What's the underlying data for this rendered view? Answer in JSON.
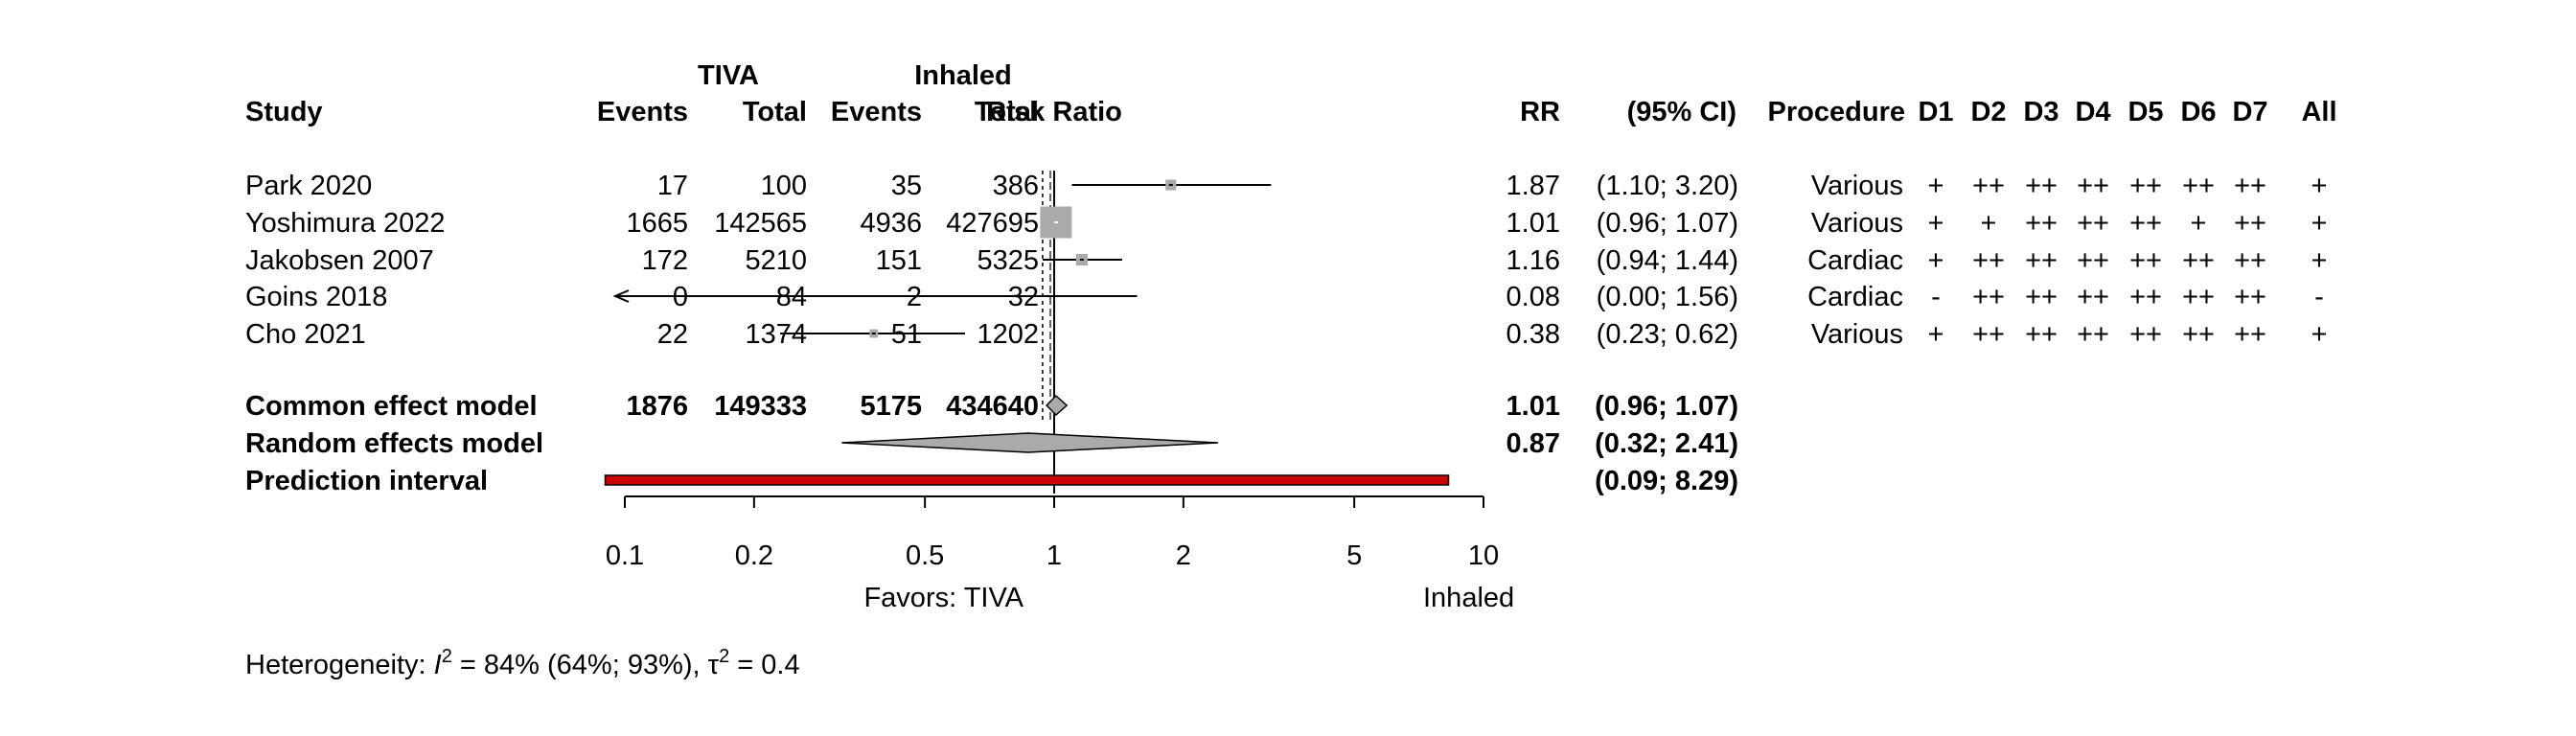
{
  "chart_data": {
    "type": "forest",
    "group_labels": {
      "treatment": "TIVA",
      "control": "Inhaled"
    },
    "headers": {
      "study": "Study",
      "events": "Events",
      "total": "Total",
      "plot": "Risk Ratio",
      "rr": "RR",
      "ci": "(95% CI)",
      "procedure": "Procedure",
      "domains": [
        "D1",
        "D2",
        "D3",
        "D4",
        "D5",
        "D6",
        "D7",
        "All"
      ]
    },
    "studies": [
      {
        "label": "Park 2020",
        "e1": "17",
        "n1": "100",
        "e2": "35",
        "n2": "386",
        "rr": 1.87,
        "lower": 1.1,
        "upper": 3.2,
        "rr_text": "1.87",
        "ci_text": "(1.10; 3.20)",
        "procedure": "Various",
        "bias": [
          "+",
          "++",
          "++",
          "++",
          "++",
          "++",
          "++",
          "+"
        ],
        "weight": 0.1
      },
      {
        "label": "Yoshimura 2022",
        "e1": "1665",
        "n1": "142565",
        "e2": "4936",
        "n2": "427695",
        "rr": 1.01,
        "lower": 0.96,
        "upper": 1.07,
        "rr_text": "1.01",
        "ci_text": "(0.96; 1.07)",
        "procedure": "Various",
        "bias": [
          "+",
          "+",
          "++",
          "++",
          "++",
          "+",
          "++",
          "+"
        ],
        "weight": 1.0
      },
      {
        "label": "Jakobsen 2007",
        "e1": "172",
        "n1": "5210",
        "e2": "151",
        "n2": "5325",
        "rr": 1.16,
        "lower": 0.94,
        "upper": 1.44,
        "rr_text": "1.16",
        "ci_text": "(0.94; 1.44)",
        "procedure": "Cardiac",
        "bias": [
          "+",
          "++",
          "++",
          "++",
          "++",
          "++",
          "++",
          "+"
        ],
        "weight": 0.12
      },
      {
        "label": "Goins 2018",
        "e1": "0",
        "n1": "84",
        "e2": "2",
        "n2": "32",
        "rr": 0.08,
        "lower": 0.0,
        "upper": 1.56,
        "rr_text": "0.08",
        "ci_text": "(0.00; 1.56)",
        "procedure": "Cardiac",
        "bias": [
          "-",
          "++",
          "++",
          "++",
          "++",
          "++",
          "++",
          "-"
        ],
        "weight": 0.0
      },
      {
        "label": "Cho 2021",
        "e1": "22",
        "n1": "1374",
        "e2": "51",
        "n2": "1202",
        "rr": 0.38,
        "lower": 0.23,
        "upper": 0.62,
        "rr_text": "0.38",
        "ci_text": "(0.23; 0.62)",
        "procedure": "Various",
        "bias": [
          "+",
          "++",
          "++",
          "++",
          "++",
          "++",
          "++",
          "+"
        ],
        "weight": 0.06
      }
    ],
    "common": {
      "label": "Common effect model",
      "e1": "1876",
      "n1": "149333",
      "e2": "5175",
      "n2": "434640",
      "rr": 1.01,
      "lower": 0.96,
      "upper": 1.07,
      "rr_text": "1.01",
      "ci_text": "(0.96; 1.07)"
    },
    "random": {
      "label": "Random effects model",
      "rr": 0.87,
      "lower": 0.32,
      "upper": 2.41,
      "rr_text": "0.87",
      "ci_text": "(0.32; 2.41)"
    },
    "prediction": {
      "label": "Prediction interval",
      "lower": 0.09,
      "upper": 8.29,
      "ci_text": "(0.09; 8.29)"
    },
    "axis": {
      "scale": "log",
      "range": [
        0.1,
        10
      ],
      "ticks": [
        0.1,
        0.2,
        0.5,
        1,
        2,
        5,
        10
      ],
      "tick_labels": [
        "0.1",
        "0.2",
        "0.5",
        "1",
        "2",
        "5",
        "10"
      ],
      "favors_left": "Favors: TIVA",
      "favors_right": "Inhaled"
    },
    "heterogeneity": {
      "prefix": "Heterogeneity: ",
      "i2_symbol": "I",
      "i2_text": " = 84% (64%; 93%), ",
      "tau_symbol": "τ",
      "tau_text": " = 0.4",
      "sup": "2"
    },
    "colors": {
      "prediction_fill": "#cc0000",
      "square": "#aaaaaa",
      "diamond": "#aaaaaa"
    }
  }
}
